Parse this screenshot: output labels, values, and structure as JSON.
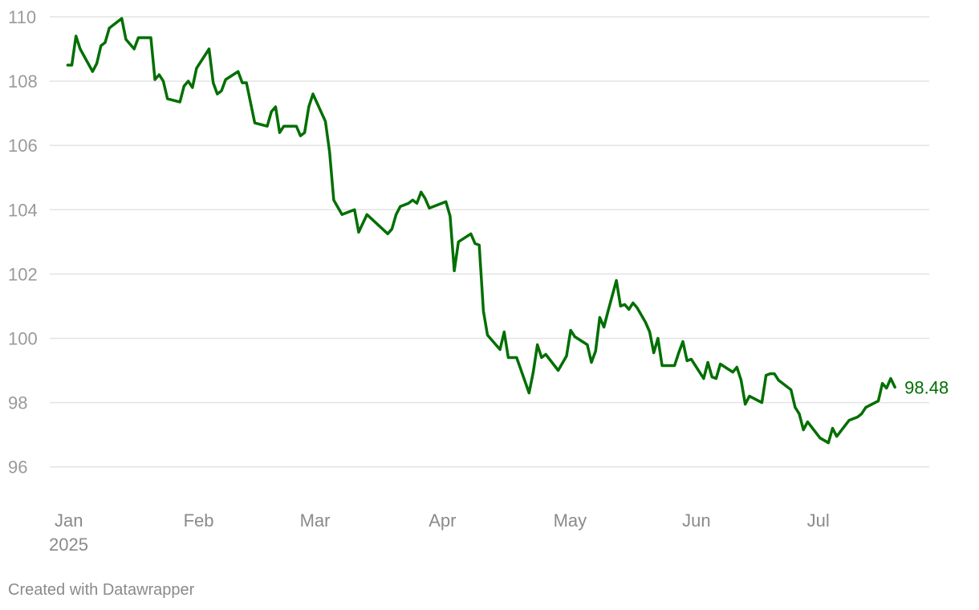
{
  "chart_data": {
    "type": "line",
    "title": "",
    "xlabel": "",
    "ylabel": "",
    "ylim": [
      95,
      110
    ],
    "y_ticks": [
      96,
      98,
      100,
      102,
      104,
      106,
      108,
      110
    ],
    "x_tick_labels": [
      {
        "label": "Jan",
        "sub": "2025",
        "date": "2025-01-01"
      },
      {
        "label": "Feb",
        "sub": "",
        "date": "2025-02-01"
      },
      {
        "label": "Mar",
        "sub": "",
        "date": "2025-03-01"
      },
      {
        "label": "Apr",
        "sub": "",
        "date": "2025-04-01"
      },
      {
        "label": "May",
        "sub": "",
        "date": "2025-05-01"
      },
      {
        "label": "Jun",
        "sub": "",
        "date": "2025-06-01"
      },
      {
        "label": "Jul",
        "sub": "",
        "date": "2025-07-01"
      }
    ],
    "grid": true,
    "legend": "none",
    "series": [
      {
        "color": "#006f00",
        "end_label": "98.48",
        "points": [
          [
            "2025-01-03",
            108.5
          ],
          [
            "2025-01-04",
            108.5
          ],
          [
            "2025-01-05",
            109.4
          ],
          [
            "2025-01-06",
            109.0
          ],
          [
            "2025-01-09",
            108.3
          ],
          [
            "2025-01-10",
            108.55
          ],
          [
            "2025-01-11",
            109.1
          ],
          [
            "2025-01-12",
            109.2
          ],
          [
            "2025-01-13",
            109.65
          ],
          [
            "2025-01-16",
            109.95
          ],
          [
            "2025-01-17",
            109.3
          ],
          [
            "2025-01-19",
            109.0
          ],
          [
            "2025-01-20",
            109.35
          ],
          [
            "2025-01-23",
            109.35
          ],
          [
            "2025-01-24",
            108.05
          ],
          [
            "2025-01-25",
            108.2
          ],
          [
            "2025-01-26",
            108.0
          ],
          [
            "2025-01-27",
            107.45
          ],
          [
            "2025-01-30",
            107.35
          ],
          [
            "2025-01-31",
            107.85
          ],
          [
            "2025-02-01",
            108.0
          ],
          [
            "2025-02-02",
            107.8
          ],
          [
            "2025-02-03",
            108.4
          ],
          [
            "2025-02-06",
            109.0
          ],
          [
            "2025-02-07",
            107.95
          ],
          [
            "2025-02-08",
            107.6
          ],
          [
            "2025-02-09",
            107.7
          ],
          [
            "2025-02-10",
            108.05
          ],
          [
            "2025-02-13",
            108.3
          ],
          [
            "2025-02-14",
            107.95
          ],
          [
            "2025-02-15",
            107.95
          ],
          [
            "2025-02-17",
            106.7
          ],
          [
            "2025-02-20",
            106.6
          ],
          [
            "2025-02-21",
            107.05
          ],
          [
            "2025-02-22",
            107.2
          ],
          [
            "2025-02-23",
            106.4
          ],
          [
            "2025-02-24",
            106.6
          ],
          [
            "2025-02-27",
            106.6
          ],
          [
            "2025-02-28",
            106.3
          ],
          [
            "2025-03-01",
            106.4
          ],
          [
            "2025-03-02",
            107.2
          ],
          [
            "2025-03-03",
            107.6
          ],
          [
            "2025-03-06",
            106.75
          ],
          [
            "2025-03-07",
            105.8
          ],
          [
            "2025-03-08",
            104.3
          ],
          [
            "2025-03-10",
            103.85
          ],
          [
            "2025-03-13",
            104.0
          ],
          [
            "2025-03-14",
            103.3
          ],
          [
            "2025-03-16",
            103.85
          ],
          [
            "2025-03-21",
            103.25
          ],
          [
            "2025-03-22",
            103.4
          ],
          [
            "2025-03-23",
            103.85
          ],
          [
            "2025-03-24",
            104.1
          ],
          [
            "2025-03-26",
            104.2
          ],
          [
            "2025-03-27",
            104.3
          ],
          [
            "2025-03-28",
            104.2
          ],
          [
            "2025-03-29",
            104.55
          ],
          [
            "2025-03-30",
            104.35
          ],
          [
            "2025-03-31",
            104.05
          ],
          [
            "2025-04-04",
            104.25
          ],
          [
            "2025-04-05",
            103.8
          ],
          [
            "2025-04-06",
            102.1
          ],
          [
            "2025-04-07",
            103.0
          ],
          [
            "2025-04-10",
            103.25
          ],
          [
            "2025-04-11",
            102.95
          ],
          [
            "2025-04-12",
            102.9
          ],
          [
            "2025-04-13",
            100.85
          ],
          [
            "2025-04-14",
            100.1
          ],
          [
            "2025-04-17",
            99.65
          ],
          [
            "2025-04-18",
            100.2
          ],
          [
            "2025-04-19",
            99.4
          ],
          [
            "2025-04-21",
            99.4
          ],
          [
            "2025-04-24",
            98.3
          ],
          [
            "2025-04-25",
            98.95
          ],
          [
            "2025-04-26",
            99.8
          ],
          [
            "2025-04-27",
            99.4
          ],
          [
            "2025-04-28",
            99.5
          ],
          [
            "2025-05-01",
            99.0
          ],
          [
            "2025-05-03",
            99.45
          ],
          [
            "2025-05-04",
            100.25
          ],
          [
            "2025-05-05",
            100.05
          ],
          [
            "2025-05-08",
            99.8
          ],
          [
            "2025-05-09",
            99.25
          ],
          [
            "2025-05-10",
            99.6
          ],
          [
            "2025-05-11",
            100.65
          ],
          [
            "2025-05-12",
            100.35
          ],
          [
            "2025-05-13",
            100.85
          ],
          [
            "2025-05-15",
            101.8
          ],
          [
            "2025-05-16",
            101.0
          ],
          [
            "2025-05-17",
            101.05
          ],
          [
            "2025-05-18",
            100.9
          ],
          [
            "2025-05-19",
            101.1
          ],
          [
            "2025-05-20",
            100.95
          ],
          [
            "2025-05-22",
            100.5
          ],
          [
            "2025-05-23",
            100.2
          ],
          [
            "2025-05-24",
            99.55
          ],
          [
            "2025-05-25",
            100.0
          ],
          [
            "2025-05-26",
            99.15
          ],
          [
            "2025-05-29",
            99.15
          ],
          [
            "2025-05-30",
            99.55
          ],
          [
            "2025-05-31",
            99.9
          ],
          [
            "2025-06-01",
            99.3
          ],
          [
            "2025-06-02",
            99.35
          ],
          [
            "2025-06-05",
            98.75
          ],
          [
            "2025-06-06",
            99.25
          ],
          [
            "2025-06-07",
            98.8
          ],
          [
            "2025-06-08",
            98.75
          ],
          [
            "2025-06-09",
            99.2
          ],
          [
            "2025-06-12",
            98.95
          ],
          [
            "2025-06-13",
            99.1
          ],
          [
            "2025-06-14",
            98.7
          ],
          [
            "2025-06-15",
            97.95
          ],
          [
            "2025-06-16",
            98.2
          ],
          [
            "2025-06-19",
            98.0
          ],
          [
            "2025-06-20",
            98.85
          ],
          [
            "2025-06-21",
            98.9
          ],
          [
            "2025-06-22",
            98.9
          ],
          [
            "2025-06-23",
            98.7
          ],
          [
            "2025-06-26",
            98.4
          ],
          [
            "2025-06-27",
            97.85
          ],
          [
            "2025-06-28",
            97.65
          ],
          [
            "2025-06-29",
            97.15
          ],
          [
            "2025-06-30",
            97.4
          ],
          [
            "2025-07-03",
            96.9
          ],
          [
            "2025-07-05",
            96.75
          ],
          [
            "2025-07-06",
            97.2
          ],
          [
            "2025-07-07",
            96.95
          ],
          [
            "2025-07-10",
            97.45
          ],
          [
            "2025-07-12",
            97.55
          ],
          [
            "2025-07-13",
            97.65
          ],
          [
            "2025-07-14",
            97.85
          ],
          [
            "2025-07-17",
            98.05
          ],
          [
            "2025-07-18",
            98.6
          ],
          [
            "2025-07-19",
            98.45
          ],
          [
            "2025-07-20",
            98.75
          ],
          [
            "2025-07-21",
            98.48
          ]
        ]
      }
    ]
  },
  "footer": {
    "credit": "Created with Datawrapper"
  }
}
